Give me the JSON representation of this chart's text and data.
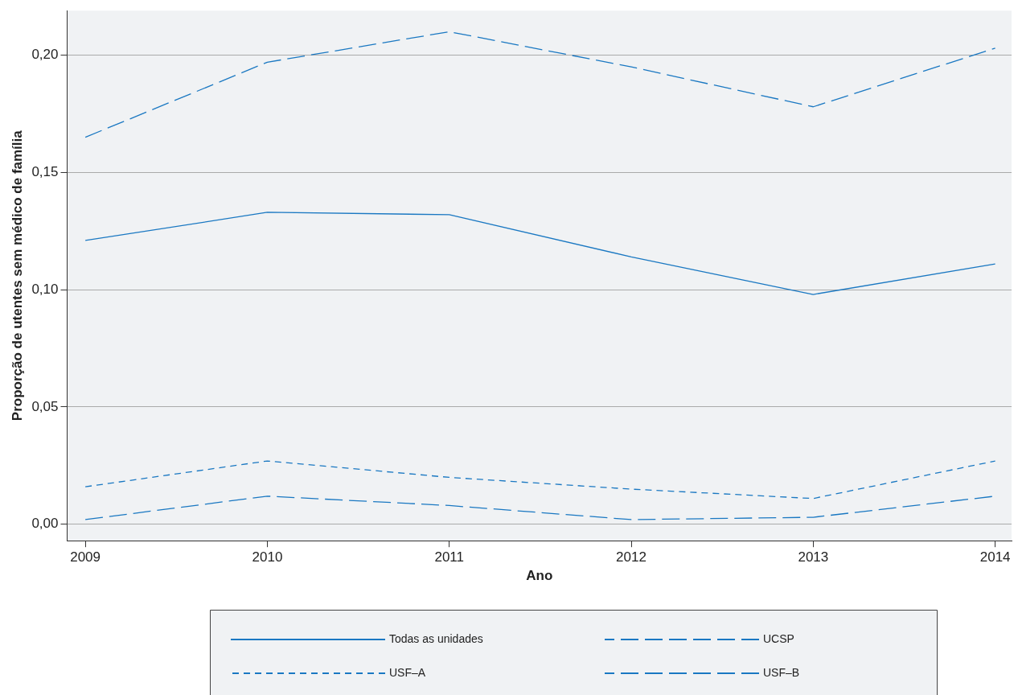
{
  "chart_data": {
    "type": "line",
    "xlabel": "Ano",
    "ylabel": "Proporção de utentes sem médico de família",
    "x": [
      2009,
      2010,
      2011,
      2012,
      2013,
      2014
    ],
    "series": [
      {
        "name": "Todas as unidades",
        "color": "#1a78c2",
        "line_style": "solid",
        "values": [
          0.121,
          0.133,
          0.132,
          0.114,
          0.098,
          0.111
        ]
      },
      {
        "name": "UCSP",
        "color": "#1a78c2",
        "line_style": "dashed",
        "values": [
          0.165,
          0.197,
          0.21,
          0.195,
          0.178,
          0.203
        ]
      },
      {
        "name": "USF–A",
        "color": "#1a78c2",
        "line_style": "dotted",
        "values": [
          0.016,
          0.027,
          0.02,
          0.015,
          0.011,
          0.027
        ]
      },
      {
        "name": "USF–B",
        "color": "#1a78c2",
        "line_style": "dashed",
        "values": [
          0.002,
          0.012,
          0.008,
          0.002,
          0.003,
          0.012
        ]
      }
    ],
    "xlim": [
      2008.9,
      2014.09
    ],
    "xticks": [
      2009,
      2010,
      2011,
      2012,
      2013,
      2014
    ],
    "ylim": [
      -0.007,
      0.219
    ],
    "yticks": [
      {
        "value": 0,
        "label": "0,00"
      },
      {
        "value": 0.05,
        "label": "0,05"
      },
      {
        "value": 0.1,
        "label": "0,10"
      },
      {
        "value": 0.15,
        "label": "0,15"
      },
      {
        "value": 0.2,
        "label": "0,20"
      }
    ],
    "grid": "y",
    "legend": "bottom",
    "marker": "none"
  }
}
